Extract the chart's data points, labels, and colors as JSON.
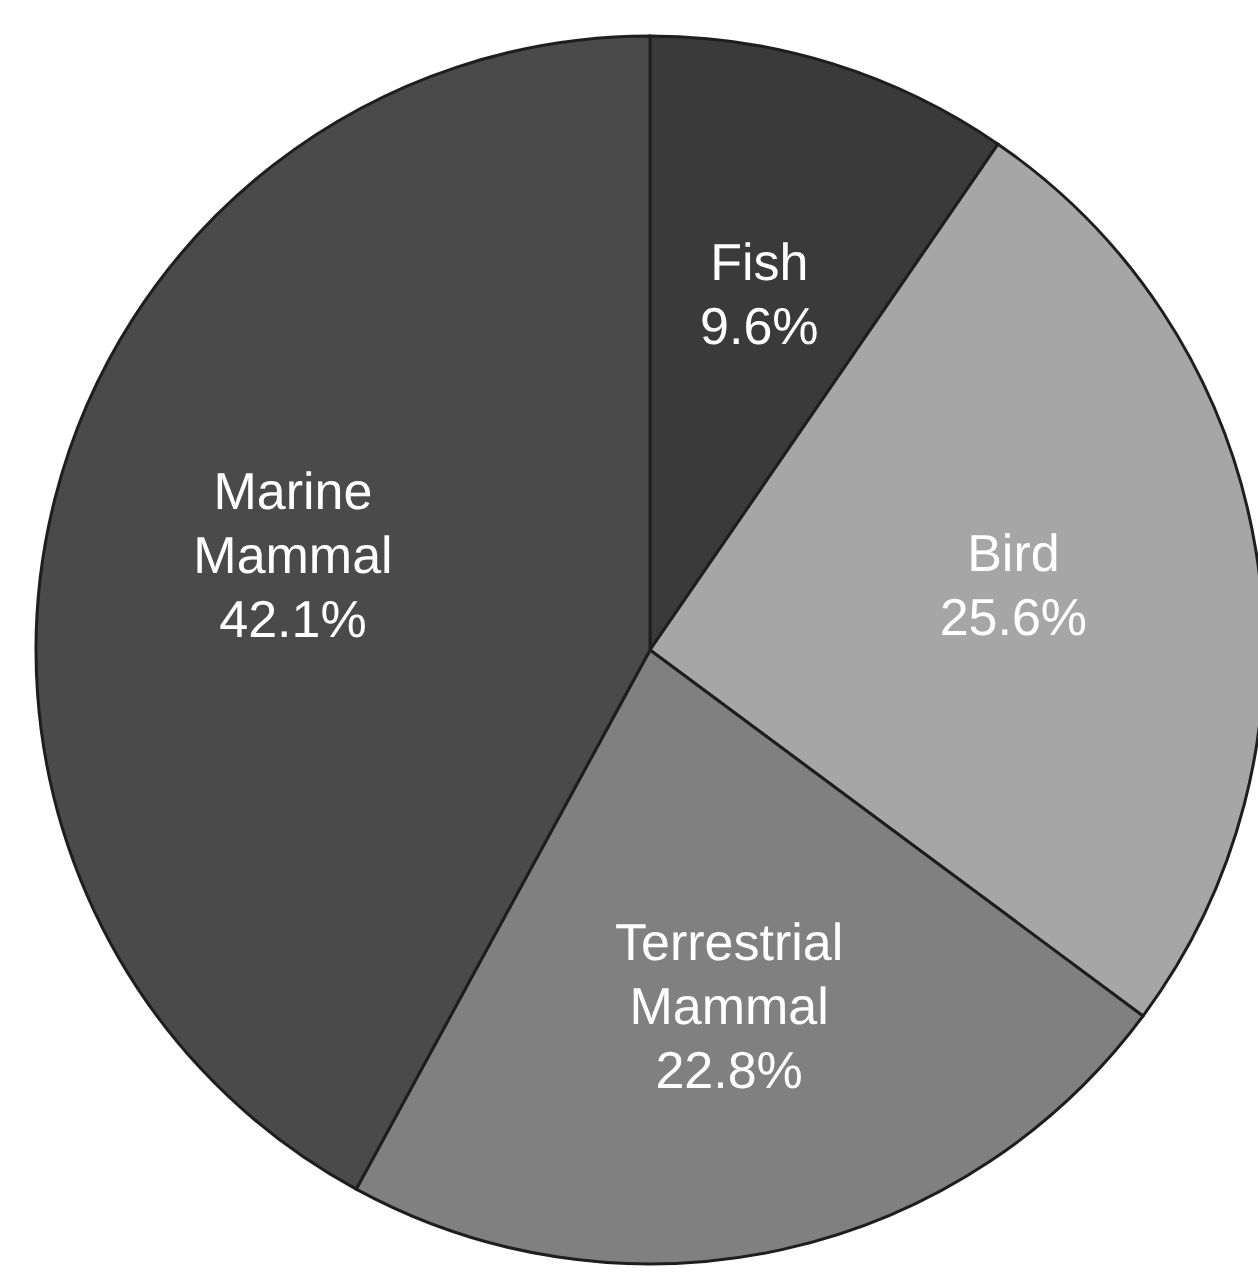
{
  "chart_data": {
    "type": "pie",
    "categories": [
      "Fish",
      "Bird",
      "Terrestrial Mammal",
      "Marine Mammal"
    ],
    "values": [
      9.6,
      25.6,
      22.8,
      42.1
    ],
    "colors": [
      "#3a3a3a",
      "#a6a6a6",
      "#808080",
      "#4a4a4a"
    ],
    "value_labels": [
      "9.6%",
      "25.6%",
      "22.8%",
      "42.1%"
    ],
    "legend": false
  }
}
